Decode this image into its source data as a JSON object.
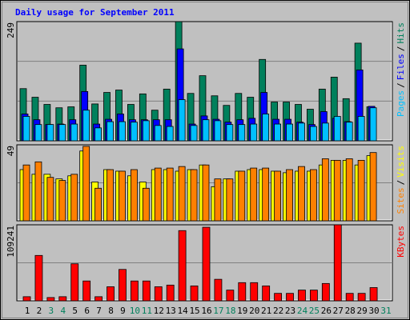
{
  "chart_data": [
    {
      "type": "bar",
      "title": "Daily usage for September 2011",
      "ylim": [
        0,
        249
      ],
      "yticks": [
        249
      ],
      "grid": 3,
      "legend_separator": "/",
      "series": [
        {
          "name": "Hits",
          "color": "#00805c",
          "values": [
            109,
            91,
            76,
            69,
            71,
            158,
            77,
            101,
            106,
            76,
            98,
            64,
            108,
            249,
            99,
            136,
            94,
            74,
            99,
            91,
            170,
            81,
            81,
            76,
            66,
            108,
            133,
            88,
            204,
            71,
            null
          ]
        },
        {
          "name": "Files",
          "color": "#0000ff",
          "values": [
            56,
            44,
            34,
            35,
            44,
            103,
            35,
            45,
            56,
            44,
            44,
            44,
            44,
            192,
            35,
            52,
            45,
            39,
            44,
            47,
            101,
            45,
            45,
            39,
            34,
            61,
            47,
            40,
            148,
            72,
            null
          ]
        },
        {
          "name": "Pages",
          "color": "#00c0ff",
          "values": [
            51,
            34,
            34,
            34,
            35,
            64,
            27,
            40,
            40,
            39,
            42,
            32,
            30,
            86,
            32,
            44,
            42,
            34,
            34,
            35,
            56,
            35,
            35,
            37,
            30,
            37,
            51,
            39,
            51,
            69,
            null
          ]
        }
      ]
    },
    {
      "type": "bar",
      "ylim": [
        0,
        49
      ],
      "yticks": [
        49
      ],
      "grid": 2,
      "legend_separator": "/",
      "series": [
        {
          "name": "Visits",
          "color": "#ffff00",
          "values": [
            33,
            30,
            30,
            27,
            29,
            45,
            25,
            33,
            32,
            29,
            25,
            33,
            33,
            32,
            33,
            36,
            22,
            27,
            32,
            33,
            33,
            32,
            31,
            32,
            32,
            36,
            39,
            39,
            36,
            42,
            null
          ]
        },
        {
          "name": "Sites",
          "color": "#ff8000",
          "values": [
            36,
            38,
            28,
            26,
            30,
            48,
            21,
            33,
            32,
            33,
            21,
            34,
            34,
            35,
            33,
            36,
            27,
            27,
            32,
            34,
            34,
            32,
            33,
            35,
            33,
            40,
            39,
            40,
            39,
            44,
            null
          ]
        }
      ]
    },
    {
      "type": "bar",
      "ylim": [
        0,
        109241
      ],
      "yticks": [
        109241
      ],
      "grid": 2,
      "legend_separator": "/",
      "categories": [
        "1",
        "2",
        "3",
        "4",
        "5",
        "6",
        "7",
        "8",
        "9",
        "10",
        "11",
        "12",
        "13",
        "14",
        "15",
        "16",
        "17",
        "18",
        "19",
        "20",
        "21",
        "22",
        "23",
        "24",
        "25",
        "26",
        "27",
        "28",
        "29",
        "30",
        "31"
      ],
      "category_colors": [
        "#000000",
        "#000000",
        "#00805c",
        "#00805c",
        "#000000",
        "#000000",
        "#000000",
        "#000000",
        "#000000",
        "#00805c",
        "#00805c",
        "#000000",
        "#000000",
        "#000000",
        "#000000",
        "#000000",
        "#00805c",
        "#00805c",
        "#000000",
        "#000000",
        "#000000",
        "#000000",
        "#000000",
        "#00805c",
        "#00805c",
        "#000000",
        "#000000",
        "#000000",
        "#000000",
        "#000000",
        "#00805c"
      ],
      "series": [
        {
          "name": "KBytes",
          "color": "#ff0000",
          "values": [
            5900,
            65200,
            4700,
            5900,
            53200,
            28500,
            5900,
            20200,
            45100,
            28500,
            28500,
            20200,
            22600,
            100900,
            21400,
            105700,
            30900,
            15400,
            26100,
            26100,
            21400,
            10700,
            10700,
            15400,
            15400,
            24900,
            109241,
            10700,
            10700,
            19000,
            null
          ]
        }
      ]
    }
  ]
}
